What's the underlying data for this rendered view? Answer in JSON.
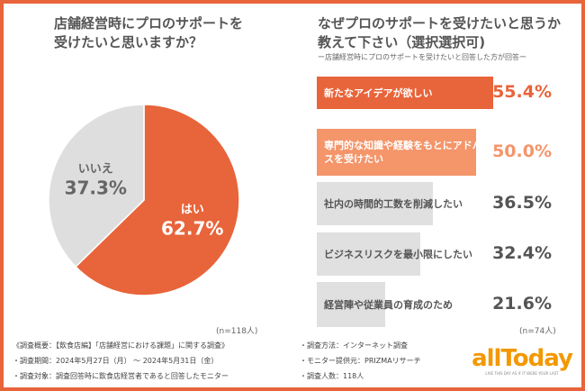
{
  "left": {
    "title_line1": "店舗経営時にプロのサポートを",
    "title_line2": "受けたいと思いますか？",
    "n": "(n=118人)"
  },
  "right": {
    "title_line1": "なぜプロのサポートを受けたいと思うか",
    "title_line2": "教えて下さい（選択選択可)",
    "subtitle": "ー店舗経営時にプロのサポートを受けたいと回答した方が回答ー",
    "n": "(n=74人)"
  },
  "chart_data": [
    {
      "type": "pie",
      "slices": [
        {
          "label": "はい",
          "value": 62.7,
          "display": "62.7%",
          "color": "#e8643a"
        },
        {
          "label": "いいえ",
          "value": 37.3,
          "display": "37.3%",
          "color": "#dedede"
        }
      ]
    },
    {
      "type": "bar",
      "orientation": "horizontal",
      "categories": [
        "新たなアイデアが欲しい",
        "専門的な知識や経験をもとにアドバイスを受けたい",
        "社内の時間的工数を削減したい",
        "ビジネスリスクを最小限にしたい",
        "経営陣や従業員の育成のため"
      ],
      "values": [
        55.4,
        50.0,
        36.5,
        32.4,
        21.6
      ],
      "labels": [
        "55.4%",
        "50.0%",
        "36.5%",
        "32.4%",
        "21.6%"
      ],
      "colors": [
        "#e8643a",
        "#f4956a",
        "#e0e0e0",
        "#e0e0e0",
        "#e0e0e0"
      ]
    }
  ],
  "footer": {
    "left": [
      "《調査概要：【飲食店編】「店舗経営における課題」に関する調査》",
      "・調査期間：2024年5月27日（月） ～ 2024年5月31日（金）",
      "・調査対象：調査回答時に飲食店経営者であると回答したモニター"
    ],
    "right": [
      "・調査方法：インターネット調査",
      "・モニター提供元：PRIZMAリサーチ",
      "・調査人数：118人"
    ]
  },
  "logo": {
    "text": "allToday",
    "tagline": "LIVE THIS DAY AS IF IT WERE YOUR LAST"
  }
}
